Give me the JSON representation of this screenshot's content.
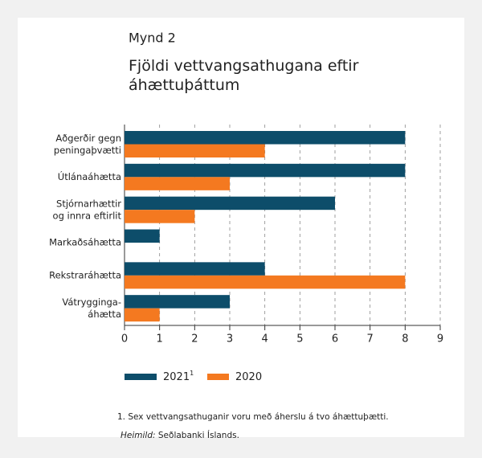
{
  "chart_data": {
    "type": "bar",
    "orientation": "horizontal",
    "kicker": "Mynd 2",
    "title": "Fjöldi vettvangsathugana eftir\náhættuþáttum",
    "categories": [
      "Aðgerðir gegn\npeningaþvætti",
      "Útlánaáhætta",
      "Stjórnarhættir\nog innra eftirlit",
      "Markaðsáhætta",
      "Rekstraráhætta",
      "Vátrygginga-\náhætta"
    ],
    "series": [
      {
        "name": "2021",
        "superscript": "1",
        "color": "#0d4d6a",
        "values": [
          8,
          8,
          6,
          1,
          4,
          3
        ]
      },
      {
        "name": "2020",
        "color": "#f47920",
        "values": [
          4,
          3,
          2,
          0,
          8,
          1
        ]
      }
    ],
    "xlim": [
      0,
      9
    ],
    "xticks": [
      0,
      1,
      2,
      3,
      4,
      5,
      6,
      7,
      8,
      9
    ],
    "grid": true,
    "footnote": "1. Sex vettvangsathuganir voru með áherslu á tvo áhættuþætti.",
    "source_label": "Heimild:",
    "source": "Seðlabanki Íslands."
  }
}
